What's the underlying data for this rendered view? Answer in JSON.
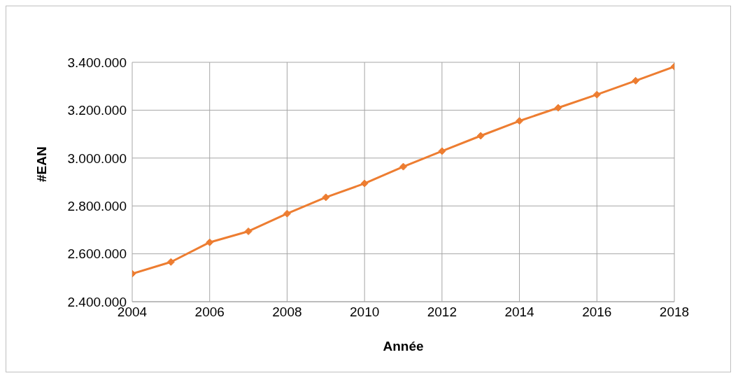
{
  "chart_data": {
    "type": "line",
    "xlabel": "Année",
    "ylabel": "#EAN",
    "x": [
      2004,
      2005,
      2006,
      2007,
      2008,
      2009,
      2010,
      2011,
      2012,
      2013,
      2014,
      2015,
      2016,
      2017,
      2018
    ],
    "series": [
      {
        "color": "#ed7d31",
        "values": [
          2517000,
          2566000,
          2648000,
          2694000,
          2768000,
          2836000,
          2894000,
          2964000,
          3029000,
          3093000,
          3155000,
          3210000,
          3265000,
          3323000,
          3382000
        ]
      }
    ],
    "xlim": [
      2004,
      2018
    ],
    "xticks": [
      2004,
      2006,
      2008,
      2010,
      2012,
      2014,
      2016,
      2018
    ],
    "ylim": [
      2400000,
      3400000
    ],
    "yticks": [
      {
        "value": 2400000,
        "label": "2.400.000"
      },
      {
        "value": 2600000,
        "label": "2.600.000"
      },
      {
        "value": 2800000,
        "label": "2.800.000"
      },
      {
        "value": 3000000,
        "label": "3.000.000"
      },
      {
        "value": 3200000,
        "label": "3.200.000"
      },
      {
        "value": 3400000,
        "label": "3.400.000"
      }
    ],
    "grid": true,
    "marker": "diamond",
    "line_style": "solid",
    "legend": false
  }
}
